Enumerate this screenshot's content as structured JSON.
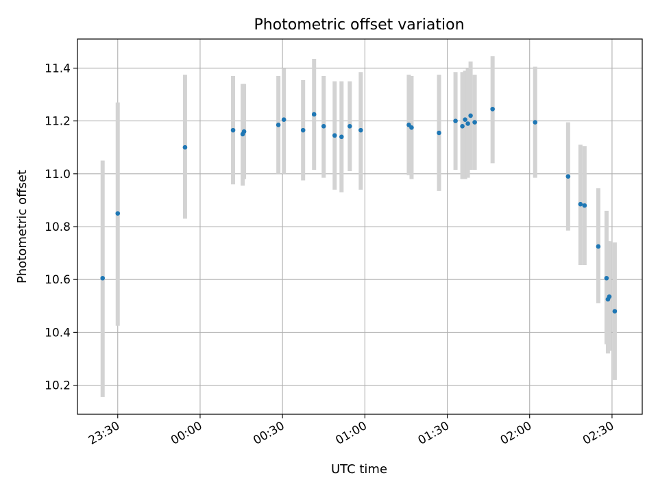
{
  "chart_data": {
    "type": "scatter",
    "title": "Photometric offset variation",
    "xlabel": "UTC time",
    "ylabel": "Photometric offset",
    "x_ticks": [
      "23:30",
      "00:00",
      "00:30",
      "01:00",
      "01:30",
      "02:00",
      "02:30"
    ],
    "y_ticks": [
      "10.2",
      "10.4",
      "10.6",
      "10.8",
      "11.0",
      "11.2",
      "11.4"
    ],
    "ylim": [
      10.09,
      11.51
    ],
    "xlim": [
      "23:15:20",
      "02:41:00"
    ],
    "grid": true,
    "errorbar_color": "#d3d3d3",
    "point_color": "#1f77b4",
    "points": [
      {
        "x": "23:24:30",
        "y": 10.605,
        "ylo": 10.155,
        "yhi": 11.05
      },
      {
        "x": "23:30:00",
        "y": 10.85,
        "ylo": 10.425,
        "yhi": 11.27
      },
      {
        "x": "23:54:30",
        "y": 11.1,
        "ylo": 10.83,
        "yhi": 11.375
      },
      {
        "x": "00:12:00",
        "y": 11.165,
        "ylo": 10.96,
        "yhi": 11.37
      },
      {
        "x": "00:15:30",
        "y": 11.15,
        "ylo": 10.955,
        "yhi": 11.34
      },
      {
        "x": "00:16:00",
        "y": 11.16,
        "ylo": 10.98,
        "yhi": 11.34
      },
      {
        "x": "00:28:30",
        "y": 11.185,
        "ylo": 11.0,
        "yhi": 11.37
      },
      {
        "x": "00:30:30",
        "y": 11.205,
        "ylo": 11.0,
        "yhi": 11.4
      },
      {
        "x": "00:37:30",
        "y": 11.165,
        "ylo": 10.975,
        "yhi": 11.355
      },
      {
        "x": "00:41:30",
        "y": 11.225,
        "ylo": 11.015,
        "yhi": 11.435
      },
      {
        "x": "00:45:00",
        "y": 11.18,
        "ylo": 10.985,
        "yhi": 11.37
      },
      {
        "x": "00:49:00",
        "y": 11.145,
        "ylo": 10.94,
        "yhi": 11.35
      },
      {
        "x": "00:51:30",
        "y": 11.14,
        "ylo": 10.93,
        "yhi": 11.35
      },
      {
        "x": "00:54:30",
        "y": 11.18,
        "ylo": 11.01,
        "yhi": 11.35
      },
      {
        "x": "00:58:30",
        "y": 11.165,
        "ylo": 10.94,
        "yhi": 11.385
      },
      {
        "x": "01:16:00",
        "y": 11.185,
        "ylo": 10.995,
        "yhi": 11.375
      },
      {
        "x": "01:17:00",
        "y": 11.175,
        "ylo": 10.98,
        "yhi": 11.37
      },
      {
        "x": "01:27:00",
        "y": 11.155,
        "ylo": 10.935,
        "yhi": 11.375
      },
      {
        "x": "01:33:00",
        "y": 11.2,
        "ylo": 11.015,
        "yhi": 11.385
      },
      {
        "x": "01:35:30",
        "y": 11.18,
        "ylo": 10.98,
        "yhi": 11.385
      },
      {
        "x": "01:36:30",
        "y": 11.205,
        "ylo": 10.98,
        "yhi": 11.39
      },
      {
        "x": "01:37:30",
        "y": 11.19,
        "ylo": 10.985,
        "yhi": 11.4
      },
      {
        "x": "01:38:30",
        "y": 11.22,
        "ylo": 11.015,
        "yhi": 11.425
      },
      {
        "x": "01:40:00",
        "y": 11.195,
        "ylo": 11.015,
        "yhi": 11.375
      },
      {
        "x": "01:46:30",
        "y": 11.245,
        "ylo": 11.04,
        "yhi": 11.445
      },
      {
        "x": "02:02:00",
        "y": 11.195,
        "ylo": 10.985,
        "yhi": 11.405
      },
      {
        "x": "02:14:00",
        "y": 10.99,
        "ylo": 10.785,
        "yhi": 11.195
      },
      {
        "x": "02:18:30",
        "y": 10.885,
        "ylo": 10.655,
        "yhi": 11.11
      },
      {
        "x": "02:20:00",
        "y": 10.88,
        "ylo": 10.655,
        "yhi": 11.105
      },
      {
        "x": "02:25:00",
        "y": 10.725,
        "ylo": 10.51,
        "yhi": 10.945
      },
      {
        "x": "02:28:00",
        "y": 10.605,
        "ylo": 10.355,
        "yhi": 10.86
      },
      {
        "x": "02:28:30",
        "y": 10.525,
        "ylo": 10.32,
        "yhi": 10.745
      },
      {
        "x": "02:29:00",
        "y": 10.535,
        "ylo": 10.33,
        "yhi": 10.745
      },
      {
        "x": "02:31:00",
        "y": 10.48,
        "ylo": 10.22,
        "yhi": 10.74
      }
    ]
  }
}
